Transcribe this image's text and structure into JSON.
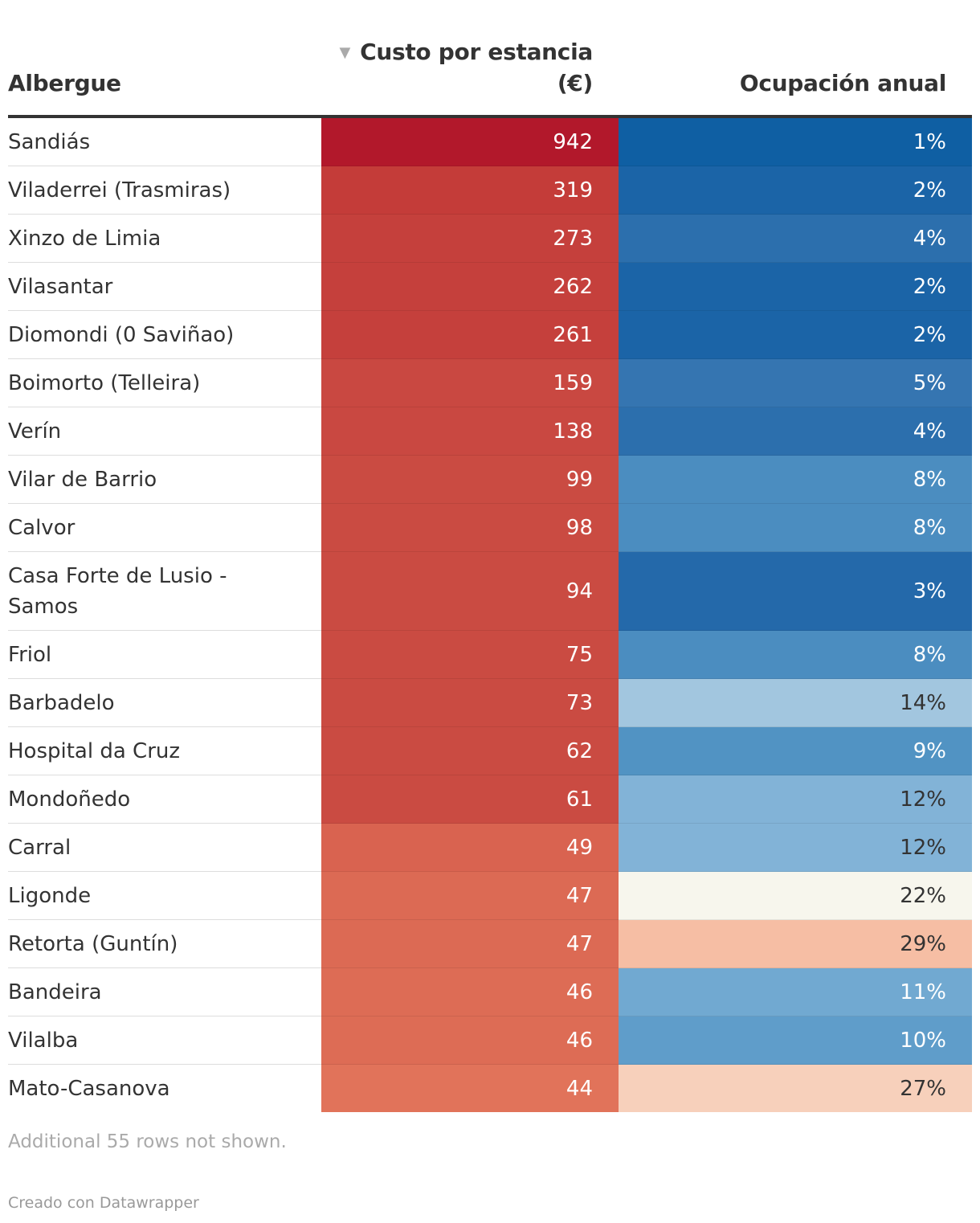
{
  "chart_data": {
    "type": "table",
    "columns": [
      {
        "key": "name",
        "label": "Albergue"
      },
      {
        "key": "cost",
        "label": "Custo por estancia (€)",
        "sorted": "descending"
      },
      {
        "key": "occ",
        "label": "Ocupación anual"
      }
    ],
    "sort_indicator": "▼",
    "rows": [
      {
        "name": "Sandiás",
        "cost": "942",
        "occ": "1%",
        "cost_color": "#b2182b",
        "occ_color": "#0f5fa3",
        "occ_text": "#ffffff"
      },
      {
        "name": "Viladerrei (Trasmiras)",
        "cost": "319",
        "occ": "2%",
        "cost_color": "#c43c39",
        "occ_color": "#1b64a7",
        "occ_text": "#ffffff"
      },
      {
        "name": "Xinzo de Limia",
        "cost": "273",
        "occ": "4%",
        "cost_color": "#c5403c",
        "occ_color": "#2c6fad",
        "occ_text": "#ffffff"
      },
      {
        "name": "Vilasantar",
        "cost": "262",
        "occ": "2%",
        "cost_color": "#c5403c",
        "occ_color": "#1b64a7",
        "occ_text": "#ffffff"
      },
      {
        "name": "Diomondi (0 Saviñao)",
        "cost": "261",
        "occ": "2%",
        "cost_color": "#c5403c",
        "occ_color": "#1b64a7",
        "occ_text": "#ffffff"
      },
      {
        "name": "Boimorto (Telleira)",
        "cost": "159",
        "occ": "5%",
        "cost_color": "#c94841",
        "occ_color": "#3575b1",
        "occ_text": "#ffffff"
      },
      {
        "name": "Verín",
        "cost": "138",
        "occ": "4%",
        "cost_color": "#c94841",
        "occ_color": "#2c6fad",
        "occ_text": "#ffffff"
      },
      {
        "name": "Vilar de Barrio",
        "cost": "99",
        "occ": "8%",
        "cost_color": "#ca4b42",
        "occ_color": "#4b8dc0",
        "occ_text": "#ffffff"
      },
      {
        "name": "Calvor",
        "cost": "98",
        "occ": "8%",
        "cost_color": "#ca4b42",
        "occ_color": "#4b8dc0",
        "occ_text": "#ffffff"
      },
      {
        "name": "Casa Forte de Lusio - Samos",
        "cost": "94",
        "occ": "3%",
        "cost_color": "#ca4b42",
        "occ_color": "#2469aa",
        "occ_text": "#ffffff"
      },
      {
        "name": "Friol",
        "cost": "75",
        "occ": "8%",
        "cost_color": "#ca4b42",
        "occ_color": "#4b8dc0",
        "occ_text": "#ffffff"
      },
      {
        "name": "Barbadelo",
        "cost": "73",
        "occ": "14%",
        "cost_color": "#ca4b42",
        "occ_color": "#a2c6df",
        "occ_text": "#333333"
      },
      {
        "name": "Hospital da Cruz",
        "cost": "62",
        "occ": "9%",
        "cost_color": "#ca4b42",
        "occ_color": "#5193c3",
        "occ_text": "#ffffff"
      },
      {
        "name": "Mondoñedo",
        "cost": "61",
        "occ": "12%",
        "cost_color": "#ca4b42",
        "occ_color": "#82b3d7",
        "occ_text": "#333333"
      },
      {
        "name": "Carral",
        "cost": "49",
        "occ": "12%",
        "cost_color": "#d96350",
        "occ_color": "#82b3d7",
        "occ_text": "#333333"
      },
      {
        "name": "Ligonde",
        "cost": "47",
        "occ": "22%",
        "cost_color": "#dc6a54",
        "occ_color": "#f7f6ed",
        "occ_text": "#333333"
      },
      {
        "name": "Retorta (Guntín)",
        "cost": "47",
        "occ": "29%",
        "cost_color": "#dc6a54",
        "occ_color": "#f6bea4",
        "occ_text": "#333333"
      },
      {
        "name": "Bandeira",
        "cost": "46",
        "occ": "11%",
        "cost_color": "#dd6c55",
        "occ_color": "#71a9d1",
        "occ_text": "#ffffff"
      },
      {
        "name": "Vilalba",
        "cost": "46",
        "occ": "10%",
        "cost_color": "#dd6c55",
        "occ_color": "#5f9dca",
        "occ_text": "#ffffff"
      },
      {
        "name": "Mato-Casanova",
        "cost": "44",
        "occ": "27%",
        "cost_color": "#e1735a",
        "occ_color": "#f7d0bb",
        "occ_text": "#333333"
      }
    ]
  },
  "footer": {
    "note": "Additional 55 rows not shown.",
    "credit": "Creado con Datawrapper"
  }
}
